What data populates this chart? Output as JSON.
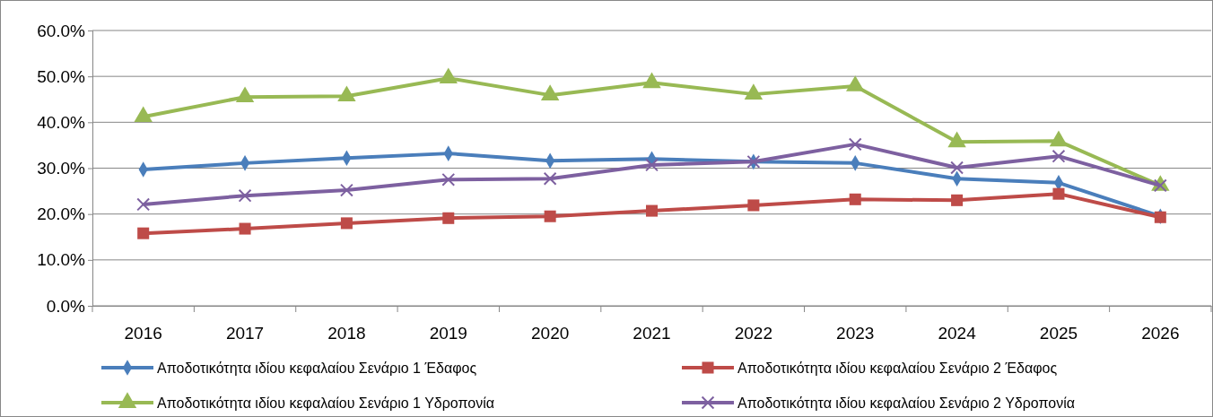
{
  "chart_data": {
    "type": "line",
    "categories": [
      "2016",
      "2017",
      "2018",
      "2019",
      "2020",
      "2021",
      "2022",
      "2023",
      "2024",
      "2025",
      "2026"
    ],
    "ylim": [
      0,
      60
    ],
    "yticks": [
      {
        "value": 0,
        "label": "0.0%"
      },
      {
        "value": 10,
        "label": "10.0%"
      },
      {
        "value": 20,
        "label": "20.0%"
      },
      {
        "value": 30,
        "label": "30.0%"
      },
      {
        "value": 40,
        "label": "40.0%"
      },
      {
        "value": 50,
        "label": "50.0%"
      },
      {
        "value": 60,
        "label": "60.0%"
      }
    ],
    "grid": "y",
    "legend": "bottom",
    "line_style": "solid",
    "series": [
      {
        "name": "Αποδοτικότητα ιδίου κεφαλαίου Σενάριο 1 Έδαφος",
        "color": "#4a7ebb",
        "marker": "diamond",
        "values": [
          29.7,
          31.1,
          32.2,
          33.2,
          31.6,
          32.0,
          31.4,
          31.1,
          27.7,
          26.8,
          19.5
        ]
      },
      {
        "name": "Αποδοτικότητα ιδίου κεφαλαίου Σενάριο 2 Έδαφος",
        "color": "#be4b48",
        "marker": "square",
        "values": [
          15.8,
          16.8,
          18.0,
          19.1,
          19.5,
          20.7,
          21.9,
          23.2,
          23.0,
          24.4,
          19.3
        ]
      },
      {
        "name": "Αποδοτικότητα ιδίου κεφαλαίου Σενάριο 1 Υδροπονία",
        "color": "#98b954",
        "marker": "triangle",
        "values": [
          41.2,
          45.5,
          45.7,
          49.6,
          45.9,
          48.6,
          46.1,
          47.9,
          35.7,
          35.9,
          26.2
        ]
      },
      {
        "name": "Αποδοτικότητα ιδίου κεφαλαίου Σενάριο 2 Υδροπονία",
        "color": "#7d60a0",
        "marker": "cross",
        "values": [
          22.1,
          24.0,
          25.2,
          27.5,
          27.7,
          30.7,
          31.4,
          35.2,
          30.1,
          32.6,
          26.2
        ]
      }
    ]
  }
}
